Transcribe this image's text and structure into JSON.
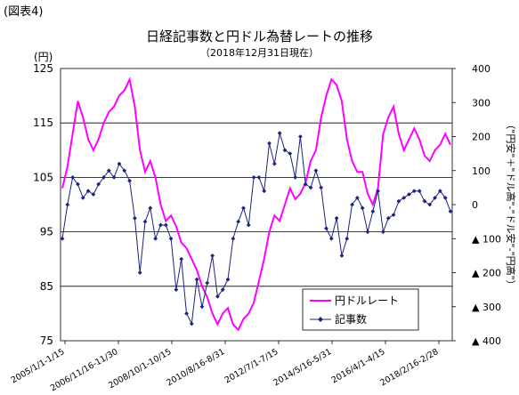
{
  "figure_label": "(図表4)",
  "colors": {
    "yen": "#ff00ff",
    "articles": "#1a237e",
    "grid": "#000000"
  },
  "chart_data": {
    "type": "line",
    "title": "日経記事数と円ドル為替レートの推移",
    "subtitle": "（2018年12月31日現在）",
    "left_axis": {
      "unit_label": "(円)",
      "ylim": [
        75,
        125
      ],
      "ticks": [
        "75",
        "85",
        "95",
        "105",
        "115",
        "125"
      ]
    },
    "right_axis": {
      "label": "（\"円安\"＋\"ドル高\"-\"ドル安\"-\"円高\"）",
      "ylim": [
        -400,
        400
      ],
      "ticks": [
        "400",
        "300",
        "200",
        "100",
        "0",
        "▲ 100",
        "▲ 200",
        "▲ 300",
        "▲ 400"
      ]
    },
    "x_tick_labels": [
      "2005/1/1-1/15",
      "2006/11/16-11/30",
      "2008/10/1-10/15",
      "2010/8/16-8/31",
      "2012/7/1-7/15",
      "2014/5/16-5/31",
      "2016/4/1-4/15",
      "2018/2/16-2/28"
    ],
    "grid": "horizontal",
    "legend_position": "bottom-right",
    "series": [
      {
        "name": "円ドルレート",
        "axis": "left",
        "marker": "none",
        "values": [
          103,
          107,
          113,
          119,
          116,
          112,
          110,
          112,
          115,
          117,
          118,
          120,
          121,
          123,
          118,
          110,
          106,
          108,
          105,
          100,
          97,
          98,
          96,
          93,
          92,
          90,
          88,
          85,
          83,
          80,
          78,
          80,
          81,
          78,
          77,
          79,
          80,
          82,
          86,
          90,
          95,
          98,
          97,
          100,
          103,
          101,
          102,
          104,
          108,
          110,
          116,
          120,
          123,
          122,
          119,
          112,
          108,
          106,
          106,
          102,
          100,
          103,
          113,
          116,
          118,
          113,
          110,
          112,
          114,
          112,
          109,
          108,
          110,
          111,
          113,
          111
        ]
      },
      {
        "name": "記事数",
        "axis": "right",
        "marker": "diamond",
        "values": [
          -100,
          0,
          80,
          60,
          20,
          40,
          30,
          60,
          80,
          100,
          80,
          120,
          100,
          70,
          -40,
          -200,
          -50,
          -10,
          -100,
          -60,
          -60,
          -100,
          -250,
          -160,
          -320,
          -350,
          -220,
          -300,
          -230,
          -150,
          -270,
          -250,
          -220,
          -100,
          -50,
          -10,
          -60,
          80,
          80,
          40,
          180,
          120,
          210,
          160,
          150,
          80,
          200,
          60,
          50,
          100,
          50,
          -70,
          -100,
          -40,
          -150,
          -100,
          0,
          20,
          -10,
          -80,
          -20,
          40,
          -80,
          -40,
          -30,
          10,
          20,
          30,
          40,
          40,
          10,
          0,
          20,
          40,
          20,
          -20
        ]
      }
    ]
  }
}
